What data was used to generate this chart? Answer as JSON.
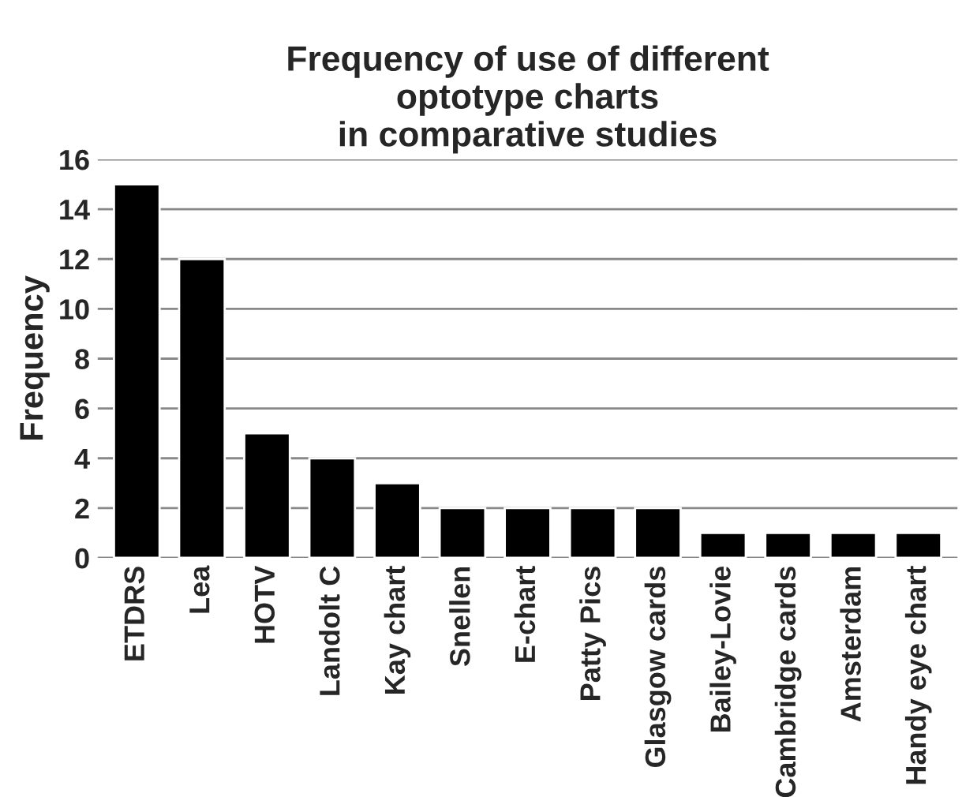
{
  "chart_data": {
    "type": "bar",
    "title": "Frequency of use of different\noptotype charts\nin comparative studies",
    "ylabel": "Frequency",
    "categories": [
      "ETDRS",
      "Lea",
      "HOTV",
      "Landolt C",
      "Kay chart",
      "Snellen",
      "E-chart",
      "Patty Pics",
      "Glasgow cards",
      "Bailey-Lovie",
      "Cambridge cards",
      "Amsterdam",
      "Handy eye chart"
    ],
    "values": [
      15,
      12,
      5,
      4,
      3,
      2,
      2,
      2,
      2,
      1,
      1,
      1,
      1
    ],
    "color": "#000000",
    "ylim": [
      0,
      16
    ],
    "yticks": [
      0,
      2,
      4,
      6,
      8,
      10,
      12,
      14,
      16
    ],
    "grid": "y"
  }
}
